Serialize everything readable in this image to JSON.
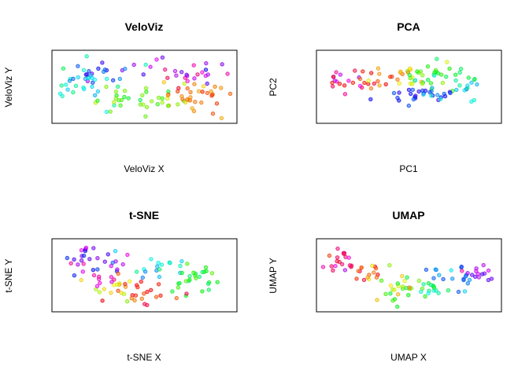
{
  "figure": {
    "background": "#ffffff"
  },
  "chart_data": [
    {
      "type": "scatter",
      "title": "VeloViz",
      "xlabel": "VeloViz X",
      "ylabel": "VeloViz Y",
      "xlim": [
        0,
        100
      ],
      "ylim": [
        0,
        100
      ],
      "grid": false,
      "ticks_shown": false,
      "color_encoding": "rainbow hue per cell",
      "seed": 11,
      "clusters": [
        {
          "x": 30,
          "y": 72,
          "sx": 13,
          "sy": 11,
          "n": 22,
          "hue": 240,
          "hs": 30
        },
        {
          "x": 16,
          "y": 52,
          "sx": 8,
          "sy": 16,
          "n": 26,
          "hue": 180,
          "hs": 20
        },
        {
          "x": 42,
          "y": 28,
          "sx": 14,
          "sy": 10,
          "n": 24,
          "hue": 110,
          "hs": 22
        },
        {
          "x": 65,
          "y": 32,
          "sx": 7,
          "sy": 10,
          "n": 14,
          "hue": 70,
          "hs": 20
        },
        {
          "x": 80,
          "y": 35,
          "sx": 10,
          "sy": 12,
          "n": 30,
          "hue": 25,
          "hs": 18
        },
        {
          "x": 78,
          "y": 72,
          "sx": 10,
          "sy": 11,
          "n": 22,
          "hue": 300,
          "hs": 25
        }
      ]
    },
    {
      "type": "scatter",
      "title": "PCA",
      "xlabel": "PC1",
      "ylabel": "PC2",
      "xlim": [
        0,
        100
      ],
      "ylim": [
        0,
        100
      ],
      "grid": false,
      "ticks_shown": false,
      "color_encoding": "rainbow hue per cell",
      "seed": 23,
      "clusters": [
        {
          "x": 14,
          "y": 58,
          "sx": 6,
          "sy": 7,
          "n": 16,
          "hue": 330,
          "hs": 25
        },
        {
          "x": 30,
          "y": 60,
          "sx": 9,
          "sy": 7,
          "n": 18,
          "hue": 25,
          "hs": 18
        },
        {
          "x": 48,
          "y": 65,
          "sx": 7,
          "sy": 8,
          "n": 14,
          "hue": 60,
          "hs": 18
        },
        {
          "x": 66,
          "y": 64,
          "sx": 10,
          "sy": 9,
          "n": 30,
          "hue": 120,
          "hs": 25
        },
        {
          "x": 58,
          "y": 36,
          "sx": 11,
          "sy": 7,
          "n": 32,
          "hue": 235,
          "hs": 25
        },
        {
          "x": 82,
          "y": 48,
          "sx": 5,
          "sy": 8,
          "n": 10,
          "hue": 175,
          "hs": 15
        }
      ]
    },
    {
      "type": "scatter",
      "title": "t-SNE",
      "xlabel": "t-SNE X",
      "ylabel": "t-SNE Y",
      "xlim": [
        0,
        100
      ],
      "ylim": [
        0,
        100
      ],
      "grid": false,
      "ticks_shown": false,
      "color_encoding": "rainbow hue per cell",
      "seed": 37,
      "clusters": [
        {
          "x": 28,
          "y": 70,
          "sx": 10,
          "sy": 10,
          "n": 30,
          "hue": 255,
          "hs": 28
        },
        {
          "x": 58,
          "y": 64,
          "sx": 8,
          "sy": 10,
          "n": 16,
          "hue": 185,
          "hs": 20
        },
        {
          "x": 80,
          "y": 48,
          "sx": 9,
          "sy": 12,
          "n": 26,
          "hue": 120,
          "hs": 22
        },
        {
          "x": 30,
          "y": 30,
          "sx": 9,
          "sy": 10,
          "n": 18,
          "hue": 45,
          "hs": 20
        },
        {
          "x": 52,
          "y": 22,
          "sx": 9,
          "sy": 10,
          "n": 18,
          "hue": 0,
          "hs": 15
        },
        {
          "x": 24,
          "y": 42,
          "sx": 5,
          "sy": 5,
          "n": 8,
          "hue": 320,
          "hs": 15
        }
      ]
    },
    {
      "type": "scatter",
      "title": "UMAP",
      "xlabel": "UMAP X",
      "ylabel": "UMAP Y",
      "xlim": [
        0,
        100
      ],
      "ylim": [
        0,
        100
      ],
      "grid": false,
      "ticks_shown": false,
      "color_encoding": "rainbow hue per cell",
      "seed": 53,
      "clusters": [
        {
          "x": 14,
          "y": 72,
          "sx": 6,
          "sy": 11,
          "n": 20,
          "hue": 330,
          "hs": 20
        },
        {
          "x": 27,
          "y": 50,
          "sx": 7,
          "sy": 10,
          "n": 14,
          "hue": 25,
          "hs": 15
        },
        {
          "x": 44,
          "y": 30,
          "sx": 8,
          "sy": 14,
          "n": 26,
          "hue": 100,
          "hs": 25
        },
        {
          "x": 64,
          "y": 32,
          "sx": 6,
          "sy": 12,
          "n": 14,
          "hue": 150,
          "hs": 20
        },
        {
          "x": 74,
          "y": 48,
          "sx": 8,
          "sy": 10,
          "n": 18,
          "hue": 205,
          "hs": 20
        },
        {
          "x": 90,
          "y": 54,
          "sx": 5,
          "sy": 9,
          "n": 14,
          "hue": 265,
          "hs": 20
        }
      ]
    }
  ]
}
